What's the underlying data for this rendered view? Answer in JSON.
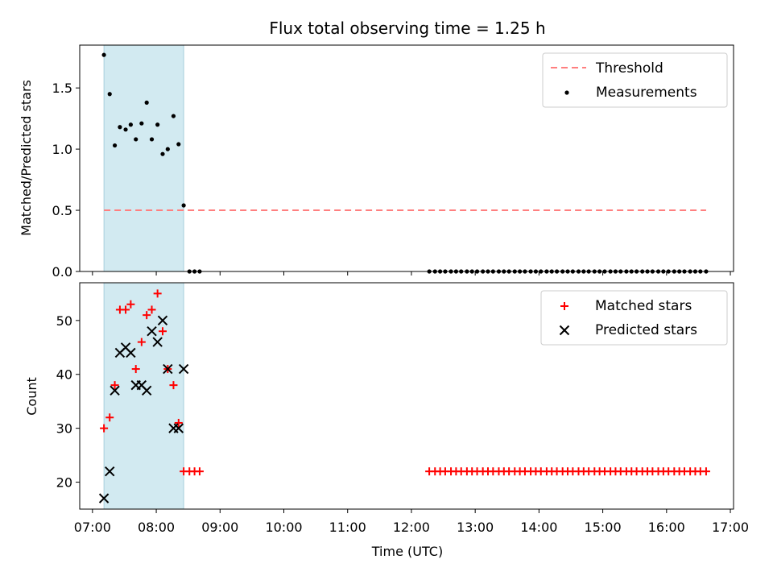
{
  "title": "Flux total observing time = 1.25 h",
  "colors": {
    "shade": "#add8e6",
    "threshold": "#ff7f7f",
    "measurement": "#000000",
    "matched": "#ff0000",
    "predicted": "#000000"
  },
  "x_axis": {
    "label": "Time (UTC)",
    "range_hours": [
      6.8,
      17.05
    ],
    "ticks": [
      {
        "h": 7,
        "label": "07:00"
      },
      {
        "h": 8,
        "label": "08:00"
      },
      {
        "h": 9,
        "label": "09:00"
      },
      {
        "h": 10,
        "label": "10:00"
      },
      {
        "h": 11,
        "label": "11:00"
      },
      {
        "h": 12,
        "label": "12:00"
      },
      {
        "h": 13,
        "label": "13:00"
      },
      {
        "h": 14,
        "label": "14:00"
      },
      {
        "h": 15,
        "label": "15:00"
      },
      {
        "h": 16,
        "label": "16:00"
      },
      {
        "h": 17,
        "label": "17:00"
      }
    ]
  },
  "chart_data": [
    {
      "type": "scatter",
      "panel": "top",
      "ylabel": "Matched/Predicted stars",
      "ylim": [
        0,
        1.85
      ],
      "yticks": [
        0.0,
        0.5,
        1.0,
        1.5
      ],
      "ytick_labels": [
        "0.0",
        "0.5",
        "1.0",
        "1.5"
      ],
      "shaded_span_hours": [
        7.18,
        8.43
      ],
      "threshold": {
        "name": "Threshold",
        "value": 0.5,
        "x_range_hours": [
          7.18,
          16.62
        ]
      },
      "series": [
        {
          "name": "Measurements",
          "x_hours": [
            7.18,
            7.27,
            7.35,
            7.43,
            7.52,
            7.6,
            7.68,
            7.77,
            7.85,
            7.93,
            8.02,
            8.1,
            8.18,
            8.27,
            8.35,
            8.43,
            8.52,
            8.6,
            8.68,
            12.28,
            12.37,
            12.45,
            12.53,
            12.62,
            12.7,
            12.78,
            12.87,
            12.95,
            13.03,
            13.12,
            13.2,
            13.28,
            13.37,
            13.45,
            13.53,
            13.62,
            13.7,
            13.78,
            13.87,
            13.95,
            14.03,
            14.12,
            14.2,
            14.28,
            14.37,
            14.45,
            14.53,
            14.62,
            14.7,
            14.78,
            14.87,
            14.95,
            15.03,
            15.12,
            15.2,
            15.28,
            15.37,
            15.45,
            15.53,
            15.62,
            15.7,
            15.78,
            15.87,
            15.95,
            16.03,
            16.12,
            16.2,
            16.28,
            16.37,
            16.45,
            16.53,
            16.62
          ],
          "y": [
            1.77,
            1.45,
            1.03,
            1.18,
            1.16,
            1.2,
            1.08,
            1.21,
            1.38,
            1.08,
            1.2,
            0.96,
            1.0,
            1.27,
            1.04,
            0.54,
            0.0,
            0.0,
            0.0,
            0.0,
            0.0,
            0.0,
            0.0,
            0.0,
            0.0,
            0.0,
            0.0,
            0.0,
            0.0,
            0.0,
            0.0,
            0.0,
            0.0,
            0.0,
            0.0,
            0.0,
            0.0,
            0.0,
            0.0,
            0.0,
            0.0,
            0.0,
            0.0,
            0.0,
            0.0,
            0.0,
            0.0,
            0.0,
            0.0,
            0.0,
            0.0,
            0.0,
            0.0,
            0.0,
            0.0,
            0.0,
            0.0,
            0.0,
            0.0,
            0.0,
            0.0,
            0.0,
            0.0,
            0.0,
            0.0,
            0.0,
            0.0,
            0.0,
            0.0,
            0.0,
            0.0,
            0.0
          ]
        }
      ],
      "legend": {
        "placement": "top-right",
        "entries": [
          "Threshold",
          "Measurements"
        ]
      }
    },
    {
      "type": "scatter",
      "panel": "bottom",
      "ylabel": "Count",
      "ylim": [
        15,
        57
      ],
      "yticks": [
        20,
        30,
        40,
        50
      ],
      "ytick_labels": [
        "20",
        "30",
        "40",
        "50"
      ],
      "shaded_span_hours": [
        7.18,
        8.43
      ],
      "series": [
        {
          "name": "Matched stars",
          "marker": "plus",
          "x_hours": [
            7.18,
            7.27,
            7.35,
            7.43,
            7.52,
            7.6,
            7.68,
            7.77,
            7.85,
            7.93,
            8.02,
            8.1,
            8.18,
            8.27,
            8.35,
            8.43,
            8.52,
            8.6,
            8.68,
            12.28,
            12.37,
            12.45,
            12.53,
            12.62,
            12.7,
            12.78,
            12.87,
            12.95,
            13.03,
            13.12,
            13.2,
            13.28,
            13.37,
            13.45,
            13.53,
            13.62,
            13.7,
            13.78,
            13.87,
            13.95,
            14.03,
            14.12,
            14.2,
            14.28,
            14.37,
            14.45,
            14.53,
            14.62,
            14.7,
            14.78,
            14.87,
            14.95,
            15.03,
            15.12,
            15.2,
            15.28,
            15.37,
            15.45,
            15.53,
            15.62,
            15.7,
            15.78,
            15.87,
            15.95,
            16.03,
            16.12,
            16.2,
            16.28,
            16.37,
            16.45,
            16.53,
            16.62
          ],
          "y": [
            30,
            32,
            38,
            52,
            52,
            53,
            41,
            46,
            51,
            52,
            55,
            48,
            41,
            38,
            31,
            22,
            22,
            22,
            22,
            22,
            22,
            22,
            22,
            22,
            22,
            22,
            22,
            22,
            22,
            22,
            22,
            22,
            22,
            22,
            22,
            22,
            22,
            22,
            22,
            22,
            22,
            22,
            22,
            22,
            22,
            22,
            22,
            22,
            22,
            22,
            22,
            22,
            22,
            22,
            22,
            22,
            22,
            22,
            22,
            22,
            22,
            22,
            22,
            22,
            22,
            22,
            22,
            22,
            22,
            22,
            22,
            22
          ]
        },
        {
          "name": "Predicted stars",
          "marker": "x",
          "x_hours": [
            7.18,
            7.27,
            7.35,
            7.43,
            7.52,
            7.6,
            7.68,
            7.77,
            7.85,
            7.93,
            8.02,
            8.1,
            8.18,
            8.27,
            8.35,
            8.43
          ],
          "y": [
            17,
            22,
            37,
            44,
            45,
            44,
            38,
            38,
            37,
            48,
            46,
            50,
            41,
            30,
            30,
            41
          ]
        }
      ],
      "legend": {
        "placement": "top-right",
        "entries": [
          "Matched stars",
          "Predicted stars"
        ]
      }
    }
  ]
}
